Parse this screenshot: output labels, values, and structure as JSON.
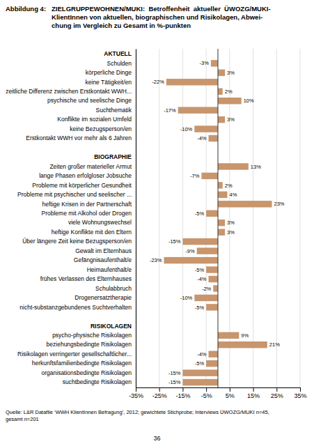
{
  "chart_data": {
    "type": "bar",
    "orientation": "horizontal",
    "title": "Abbildung 4:",
    "subtitle": [
      "ZIELGRUPPEWOHNEN/MUKI:  Betroffenheit  aktueller  ÜWOZG/MUKI-",
      "KlientInnen von aktuellen, biographischen und Risikolagen, Abwei-",
      "chung im Vergleich zu Gesamt in %-punkten"
    ],
    "annotations": [
      "Quelle: L&R Datafile ‘WWH KlientInnen Befragung’, 2012; gewichtete Stichprobe; Interviews ÜWOZG/MUKI n=45,",
      "gesamt n=201",
      "36"
    ],
    "categories": [
      "AKTUELL",
      "Schulden",
      "körperliche Dinge",
      "keine Tätigkeit/en",
      "zeitliche Differenz zwischen Erstkontakt WWH...",
      "psychische und seelische Dinge",
      "Suchthematik",
      "Konflikte im sozialen Umfeld",
      "keine Bezugsperson/en",
      "Erstkontakt WWH vor mehr als 6 Jahren",
      null,
      "BIOGRAPHIE",
      "Zeiten großer materieller Armut",
      "lange Phasen erfolgloser Jobsuche",
      "Probleme mit körperlicher Gesundheit",
      "Probleme mit psychischer und seelischer ...",
      "heftige Krisen in der Partnerschaft",
      "Probleme mit Alkohol oder Drogen",
      "viele Wohnungswechsel",
      "heftige Konflikte mit den Eltern",
      "Über längere Zeit keine Bezugsperson/en",
      "Gewalt im Elternhaus",
      "Gefängnisaufenthalt/e",
      "Heimaufenthalt/e",
      "frühes Verlassen des Elternhauses",
      "Schulabbruch",
      "Drogenersatztherapie",
      "nicht-substanzgebundenes Suchtverhalten",
      null,
      "RISIKOLAGEN",
      "psycho-physische Risikolagen",
      "beziehungsbedingte Risikolagen",
      "Risikolagen verringerter gesellschaftlicher...",
      "herkunftsfamilienbedingte Risikolagen",
      "organisationsbedingte Risikolagen",
      "suchtbedingte Risikolagen"
    ],
    "values": [
      null,
      -3,
      3,
      -22,
      2,
      10,
      -17,
      3,
      -10,
      -4,
      null,
      null,
      13,
      -7,
      2,
      4,
      23,
      -5,
      3,
      3,
      -15,
      -9,
      -23,
      -5,
      -4,
      -2,
      -10,
      -5,
      null,
      null,
      9,
      21,
      -4,
      -5,
      -15,
      -15
    ],
    "value_labels": [
      null,
      "-3%",
      "3%",
      "-22%",
      "2%",
      "10%",
      "-17%",
      "3%",
      "-10%",
      "-4%",
      null,
      null,
      "13%",
      "-7%",
      "2%",
      "4%",
      "23%",
      "-5%",
      "3%",
      "3%",
      "-15%",
      "-9%",
      "-23%",
      "-5%",
      "-4%",
      "-2%",
      "-10%",
      "-5%",
      null,
      null,
      "9%",
      "21%",
      "-4%",
      "-5%",
      "-15%",
      "-15%"
    ],
    "data_labels": true,
    "color": "#c8956c",
    "xlim": [
      -35,
      35
    ],
    "xticks": [
      {
        "value": -35,
        "label": "-35%"
      },
      {
        "value": -25,
        "label": "-25%"
      },
      {
        "value": -15,
        "label": "-15%"
      },
      {
        "value": -5,
        "label": "-5%"
      },
      {
        "value": 5,
        "label": "5%"
      },
      {
        "value": 15,
        "label": "15%"
      },
      {
        "value": 25,
        "label": "25%"
      },
      {
        "value": 35,
        "label": "35%"
      }
    ],
    "grid": true
  }
}
